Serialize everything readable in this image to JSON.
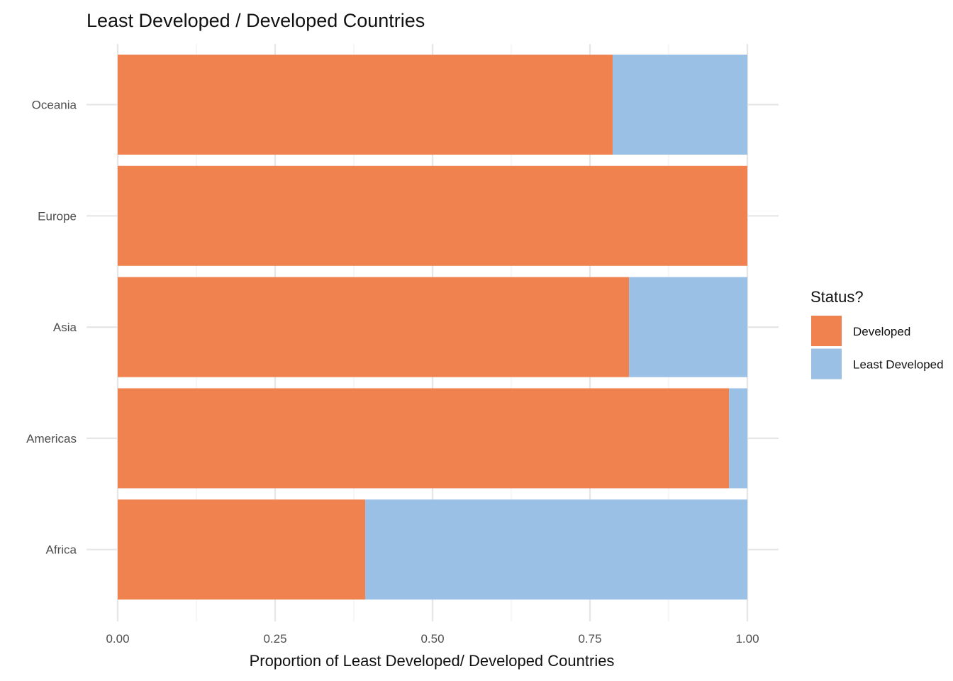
{
  "chart_data": {
    "type": "bar",
    "orientation": "horizontal",
    "stacked": true,
    "title": "Least Developed / Developed Countries",
    "xlabel": "Proportion of Least Developed/ Developed Countries",
    "ylabel": "",
    "xlim": [
      0,
      1
    ],
    "x_ticks": [
      "0.00",
      "0.25",
      "0.50",
      "0.75",
      "1.00"
    ],
    "categories": [
      "Africa",
      "Americas",
      "Asia",
      "Europe",
      "Oceania"
    ],
    "series": [
      {
        "name": "Developed",
        "color": "#ef824e",
        "values": [
          0.393,
          0.971,
          0.812,
          1.0,
          0.786
        ]
      },
      {
        "name": "Least Developed",
        "color": "#9bc0e6",
        "values": [
          0.607,
          0.029,
          0.188,
          0.0,
          0.214
        ]
      }
    ],
    "legend": {
      "title": "Status?",
      "position": "right"
    },
    "grid": true
  }
}
